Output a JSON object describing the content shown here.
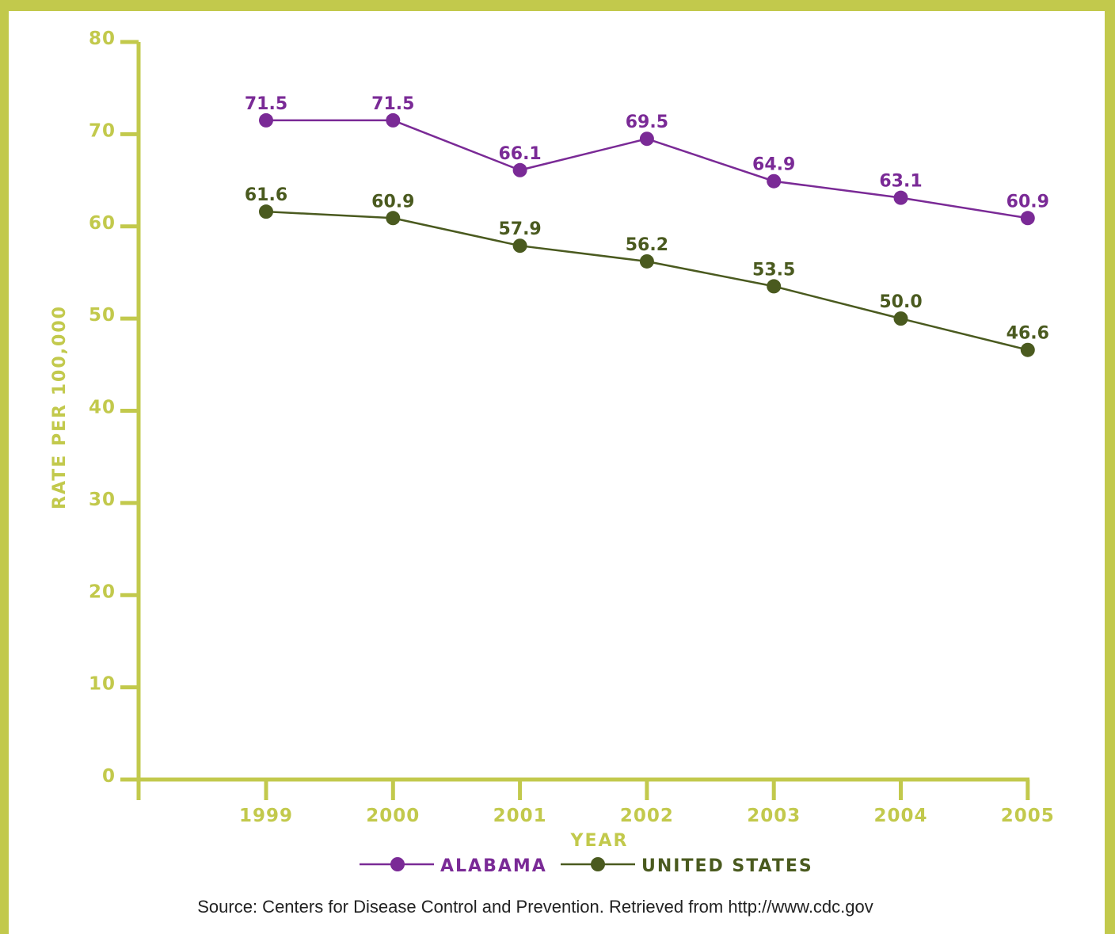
{
  "chart_data": {
    "type": "line",
    "x": [
      "1999",
      "2000",
      "2001",
      "2002",
      "2003",
      "2004",
      "2005"
    ],
    "series": [
      {
        "name": "ALABAMA",
        "color": "#7a2a96",
        "values": [
          71.5,
          71.5,
          66.1,
          69.5,
          64.9,
          63.1,
          60.9
        ],
        "labels": [
          "71.5",
          "71.5",
          "66.1",
          "69.5",
          "64.9",
          "63.1",
          "60.9"
        ]
      },
      {
        "name": "UNITED STATES",
        "color": "#4a5a1f",
        "values": [
          61.6,
          60.9,
          57.9,
          56.2,
          53.5,
          50.0,
          46.6
        ],
        "labels": [
          "61.6",
          "60.9",
          "57.9",
          "56.2",
          "53.5",
          "50.0",
          "46.6"
        ]
      }
    ],
    "xlabel": "YEAR",
    "ylabel": "RATE PER 100,000",
    "ylim": [
      0,
      80
    ],
    "yticks": [
      "0",
      "10",
      "20",
      "30",
      "40",
      "50",
      "60",
      "70",
      "80"
    ],
    "grid": false,
    "legend_position": "bottom-center",
    "axis_color": "#c2c94c"
  },
  "source": "Source: Centers for Disease Control and Prevention. Retrieved from http://www.cdc.gov"
}
